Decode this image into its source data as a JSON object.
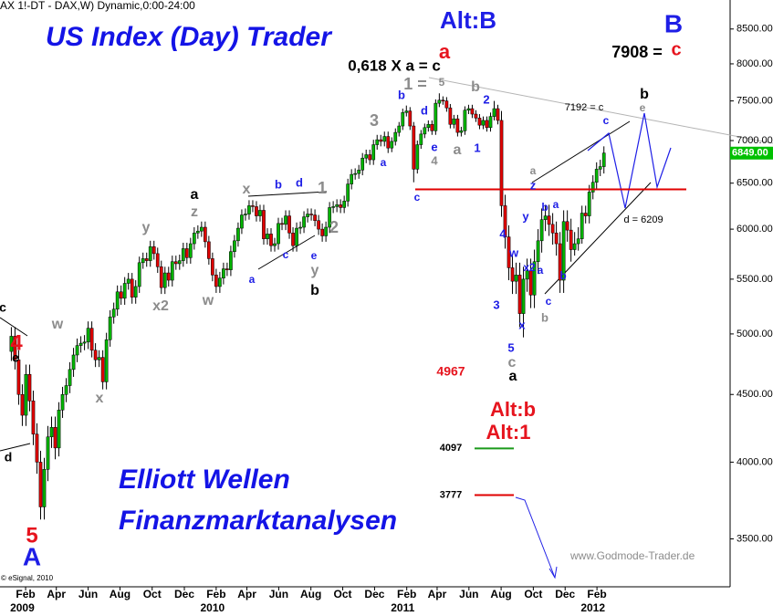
{
  "chart_data": {
    "type": "candlestick",
    "header": "AX 1!-DT - DAX,W) Dynamic,0:00-24:00",
    "title": "US Index (Day) Trader",
    "subtitle_1": "Elliott Wellen",
    "subtitle_2": "Finanzmarktanalysen",
    "watermark": "www.Godmode-Trader.de",
    "copyright": "© eSignal, 2010",
    "log": true,
    "up_color": "#00b400",
    "down_color": "#e00000",
    "open": [
      4850,
      4980,
      4780,
      4500,
      4340,
      4660,
      4450,
      4200,
      4000,
      3700,
      3950,
      4180,
      4250,
      4100,
      4380,
      4500,
      4570,
      4700,
      4820,
      4900,
      4920,
      4930,
      5050,
      4860,
      4780,
      4800,
      4600,
      4950,
      5150,
      5220,
      5380,
      5320,
      5460,
      5500,
      5330,
      5430,
      5660,
      5700,
      5680,
      5820,
      5750,
      5620,
      5420,
      5560,
      5490,
      5670,
      5650,
      5680,
      5800,
      5710,
      5850,
      5960,
      5980,
      6020,
      5870,
      5700,
      5540,
      5430,
      5510,
      5600,
      5590,
      5770,
      5880,
      6010,
      6150,
      6160,
      6250,
      6240,
      6140,
      6200,
      5900,
      5950,
      5830,
      5850,
      6060,
      6050,
      6140,
      5960,
      5830,
      6010,
      6020,
      6130,
      6160,
      6150,
      6090,
      6000,
      5930,
      6020,
      6230,
      6240,
      6260,
      6230,
      6300,
      6490,
      6600,
      6610,
      6650,
      6790,
      6830,
      6770,
      6950,
      7010,
      6990,
      7050,
      6910,
      6990,
      7100,
      7180,
      7350,
      7370,
      7180,
      6660,
      6950,
      7080,
      7160,
      7200,
      7120,
      7470,
      7510,
      7500,
      7410,
      7200,
      7270,
      7100,
      7120,
      7380,
      7400,
      7330,
      7280,
      7190,
      7250,
      7160,
      7300,
      7400,
      7250,
      6250,
      5920,
      5610,
      5480,
      5540,
      5180,
      5500,
      5580,
      5350,
      5670,
      5880,
      6100,
      6140,
      6050,
      5960,
      5850,
      5490,
      6080,
      5990,
      5790,
      5850,
      5900,
      6170,
      6140,
      6400,
      6510,
      6660,
      6690
    ],
    "high": [
      5060,
      5060,
      4860,
      4580,
      4740,
      4740,
      4530,
      4280,
      4080,
      4030,
      4260,
      4330,
      4330,
      4440,
      4560,
      4630,
      4760,
      4880,
      4960,
      4980,
      4990,
      5110,
      5110,
      4920,
      4860,
      4860,
      5010,
      5210,
      5280,
      5440,
      5440,
      5520,
      5560,
      5560,
      5490,
      5720,
      5760,
      5760,
      5880,
      5880,
      5810,
      5680,
      5620,
      5620,
      5730,
      5730,
      5740,
      5860,
      5860,
      5910,
      6020,
      6040,
      6080,
      6080,
      5930,
      5760,
      5600,
      5570,
      5660,
      5660,
      5830,
      5940,
      6070,
      6210,
      6220,
      6310,
      6310,
      6300,
      6260,
      6260,
      6010,
      6010,
      5910,
      6120,
      6120,
      6200,
      6200,
      6020,
      6070,
      6080,
      6190,
      6220,
      6220,
      6210,
      6150,
      6060,
      6080,
      6290,
      6300,
      6320,
      6320,
      6360,
      6550,
      6660,
      6670,
      6710,
      6850,
      6890,
      6890,
      7010,
      7070,
      7070,
      7110,
      7110,
      7040,
      7150,
      7230,
      7400,
      7440,
      7420,
      7230,
      7000,
      7130,
      7210,
      7250,
      7250,
      7520,
      7600,
      7560,
      7550,
      7460,
      7320,
      7320,
      7170,
      7430,
      7450,
      7450,
      7380,
      7330,
      7300,
      7300,
      7350,
      7500,
      7450,
      7370,
      6370,
      6040,
      5730,
      5660,
      5660,
      5620,
      5700,
      5700,
      5790,
      6000,
      6220,
      6260,
      6260,
      6170,
      6080,
      5970,
      6200,
      6200,
      6110,
      5970,
      6020,
      6250,
      6250,
      6480,
      6590,
      6740,
      6770,
      6930
    ],
    "low": [
      4770,
      4700,
      4420,
      4260,
      4260,
      4370,
      4120,
      3920,
      3620,
      3620,
      3870,
      4100,
      4020,
      4040,
      4320,
      4440,
      4510,
      4640,
      4760,
      4840,
      4860,
      4870,
      4800,
      4720,
      4720,
      4540,
      4540,
      4890,
      5090,
      5160,
      5260,
      5260,
      5400,
      5270,
      5270,
      5370,
      5600,
      5620,
      5620,
      5690,
      5560,
      5360,
      5360,
      5430,
      5430,
      5590,
      5590,
      5620,
      5650,
      5650,
      5790,
      5900,
      5920,
      5810,
      5640,
      5480,
      5370,
      5370,
      5450,
      5530,
      5530,
      5710,
      5820,
      5950,
      6090,
      6100,
      6180,
      6080,
      6080,
      5840,
      5840,
      5770,
      5770,
      5790,
      5990,
      5990,
      5900,
      5770,
      5770,
      5950,
      5960,
      6070,
      6090,
      6030,
      5940,
      5870,
      5870,
      5960,
      6170,
      6180,
      6170,
      6170,
      6240,
      6430,
      6540,
      6550,
      6590,
      6730,
      6710,
      6710,
      6890,
      6930,
      6930,
      6850,
      6860,
      6940,
      7050,
      7130,
      7300,
      7130,
      6510,
      6610,
      6900,
      7030,
      7110,
      7070,
      7070,
      7420,
      7450,
      7360,
      7150,
      7150,
      7050,
      7050,
      7070,
      7330,
      7280,
      7230,
      7140,
      7140,
      7110,
      7110,
      7250,
      7200,
      6130,
      5800,
      5490,
      5360,
      5360,
      5060,
      4970,
      5380,
      5230,
      5230,
      5550,
      5760,
      5980,
      5930,
      5840,
      5730,
      5370,
      5370,
      5870,
      5670,
      5730,
      5780,
      5850,
      6060,
      6060,
      6320,
      6430,
      6580,
      6610
    ],
    "close": [
      4980,
      4780,
      4500,
      4340,
      4660,
      4450,
      4200,
      4000,
      3700,
      3950,
      4180,
      4250,
      4100,
      4380,
      4500,
      4570,
      4700,
      4820,
      4900,
      4920,
      4930,
      5050,
      4860,
      4780,
      4800,
      4600,
      4950,
      5150,
      5220,
      5380,
      5320,
      5460,
      5500,
      5330,
      5430,
      5660,
      5700,
      5680,
      5820,
      5750,
      5620,
      5420,
      5560,
      5490,
      5670,
      5650,
      5680,
      5800,
      5710,
      5850,
      5960,
      5980,
      6020,
      5870,
      5700,
      5540,
      5430,
      5510,
      5600,
      5590,
      5770,
      5880,
      6010,
      6150,
      6160,
      6250,
      6240,
      6140,
      6200,
      5900,
      5950,
      5830,
      5850,
      6060,
      6050,
      6140,
      5960,
      5830,
      6010,
      6020,
      6130,
      6160,
      6150,
      6090,
      6000,
      5930,
      6020,
      6230,
      6240,
      6260,
      6230,
      6300,
      6490,
      6600,
      6610,
      6650,
      6790,
      6830,
      6770,
      6950,
      7010,
      6990,
      7050,
      6910,
      6990,
      7100,
      7180,
      7350,
      7370,
      7180,
      6660,
      6950,
      7080,
      7160,
      7200,
      7120,
      7470,
      7510,
      7500,
      7410,
      7200,
      7270,
      7100,
      7120,
      7380,
      7400,
      7330,
      7280,
      7190,
      7250,
      7160,
      7300,
      7400,
      7250,
      6250,
      5920,
      5610,
      5480,
      5540,
      5180,
      5500,
      5580,
      5350,
      5670,
      5880,
      6100,
      6140,
      6050,
      5960,
      5850,
      5490,
      6080,
      5990,
      5790,
      5850,
      5900,
      6170,
      6140,
      6400,
      6510,
      6660,
      6690,
      6850
    ],
    "ylim": [
      3220,
      8940
    ],
    "yticks": [
      {
        "value": 3500,
        "label": "3500.00"
      },
      {
        "value": 4000,
        "label": "4000.00"
      },
      {
        "value": 4500,
        "label": "4500.00"
      },
      {
        "value": 5000,
        "label": "5000.00"
      },
      {
        "value": 5500,
        "label": "5500.00"
      },
      {
        "value": 6000,
        "label": "6000.00"
      },
      {
        "value": 6500,
        "label": "6500.00"
      },
      {
        "value": 7000,
        "label": "7000.00"
      },
      {
        "value": 7500,
        "label": "7500.00"
      },
      {
        "value": 8000,
        "label": "8000.00"
      },
      {
        "value": 8500,
        "label": "8500.00"
      }
    ],
    "xlim": [
      -3.1,
      196.5
    ],
    "xticks": [
      {
        "value": 3.9,
        "label": "Feb"
      },
      {
        "value": 12.3,
        "label": "Apr"
      },
      {
        "value": 21,
        "label": "Jun"
      },
      {
        "value": 29.7,
        "label": "Aug"
      },
      {
        "value": 38.5,
        "label": "Oct"
      },
      {
        "value": 47.3,
        "label": "Dec"
      },
      {
        "value": 56,
        "label": "Feb"
      },
      {
        "value": 64.4,
        "label": "Apr"
      },
      {
        "value": 73.1,
        "label": "Jun"
      },
      {
        "value": 81.9,
        "label": "Aug"
      },
      {
        "value": 90.6,
        "label": "Oct"
      },
      {
        "value": 99.3,
        "label": "Dec"
      },
      {
        "value": 108.1,
        "label": "Feb"
      },
      {
        "value": 116.4,
        "label": "Apr"
      },
      {
        "value": 125.1,
        "label": "Jun"
      },
      {
        "value": 133.9,
        "label": "Aug"
      },
      {
        "value": 142.7,
        "label": "Oct"
      },
      {
        "value": 151.4,
        "label": "Dec"
      },
      {
        "value": 160.1,
        "label": "Feb"
      }
    ],
    "year_ticks": [
      {
        "value": 0,
        "label": "2009"
      },
      {
        "value": 52,
        "label": "2010"
      },
      {
        "value": 104,
        "label": "2011"
      },
      {
        "value": 156,
        "label": "2012"
      }
    ],
    "last_price": {
      "value": 6849,
      "label": "6849.00",
      "color": "#00c000"
    },
    "support_line": {
      "value": 6430,
      "color": "#e00000"
    },
    "levels": [
      {
        "value": 4097,
        "color": "#1a9a1a"
      },
      {
        "value": 3777,
        "color": "#e00000"
      }
    ],
    "annotations": [
      {
        "text": "Alt:B",
        "color": "#1e1ee6"
      },
      {
        "text": "B",
        "color": "#1e1ee6"
      },
      {
        "text": "a",
        "color": "#e6141e"
      },
      {
        "text": "c",
        "color": "#e6141e"
      },
      {
        "text": "7908 =",
        "color": "#000000"
      },
      {
        "text": "0,618 X a = c",
        "color": "#000000"
      },
      {
        "text": "4",
        "color": "#e6141e"
      },
      {
        "text": "5",
        "color": "#e6141e"
      },
      {
        "text": "A",
        "color": "#1e1ee6"
      },
      {
        "text": "4967",
        "color": "#e6141e"
      },
      {
        "text": "Alt:b",
        "color": "#e6141e"
      },
      {
        "text": "Alt:1",
        "color": "#e6141e"
      },
      {
        "text": "c",
        "color": "#000000"
      },
      {
        "text": "e",
        "color": "#000000"
      },
      {
        "text": "d",
        "color": "#000000"
      },
      {
        "text": "w",
        "color": "#8c8c8c"
      },
      {
        "text": "x",
        "color": "#8c8c8c"
      },
      {
        "text": "y",
        "color": "#8c8c8c"
      },
      {
        "text": "x2",
        "color": "#8c8c8c"
      },
      {
        "text": "w",
        "color": "#8c8c8c"
      },
      {
        "text": "a",
        "color": "#000000"
      },
      {
        "text": "z",
        "color": "#8c8c8c"
      },
      {
        "text": "x",
        "color": "#8c8c8c"
      },
      {
        "text": "b",
        "color": "#1e1ee6"
      },
      {
        "text": "d",
        "color": "#1e1ee6"
      },
      {
        "text": "1",
        "color": "#8c8c8c"
      },
      {
        "text": "2",
        "color": "#8c8c8c"
      },
      {
        "text": "a",
        "color": "#1e1ee6"
      },
      {
        "text": "c",
        "color": "#1e1ee6"
      },
      {
        "text": "e",
        "color": "#1e1ee6"
      },
      {
        "text": "y",
        "color": "#8c8c8c"
      },
      {
        "text": "b",
        "color": "#000000"
      },
      {
        "text": "3",
        "color": "#8c8c8c"
      },
      {
        "text": "a",
        "color": "#1e1ee6"
      },
      {
        "text": "1 =",
        "color": "#8c8c8c"
      },
      {
        "text": "5",
        "color": "#8c8c8c"
      },
      {
        "text": "b",
        "color": "#1e1ee6"
      },
      {
        "text": "d",
        "color": "#1e1ee6"
      },
      {
        "text": "e",
        "color": "#1e1ee6"
      },
      {
        "text": "4",
        "color": "#8c8c8c"
      },
      {
        "text": "c",
        "color": "#1e1ee6"
      },
      {
        "text": "b",
        "color": "#8c8c8c"
      },
      {
        "text": "2",
        "color": "#1e1ee6"
      },
      {
        "text": "a",
        "color": "#8c8c8c"
      },
      {
        "text": "1",
        "color": "#1e1ee6"
      },
      {
        "text": "4",
        "color": "#1e1ee6"
      },
      {
        "text": "w",
        "color": "#1e1ee6"
      },
      {
        "text": "3",
        "color": "#1e1ee6"
      },
      {
        "text": "x2",
        "color": "#1e1ee6"
      },
      {
        "text": "a",
        "color": "#1e1ee6"
      },
      {
        "text": "5",
        "color": "#1e1ee6"
      },
      {
        "text": "c",
        "color": "#8c8c8c"
      },
      {
        "text": "a",
        "color": "#000000"
      },
      {
        "text": "x",
        "color": "#1e1ee6"
      },
      {
        "text": "y",
        "color": "#1e1ee6"
      },
      {
        "text": "z",
        "color": "#1e1ee6"
      },
      {
        "text": "a",
        "color": "#8c8c8c"
      },
      {
        "text": "b",
        "color": "#1e1ee6"
      },
      {
        "text": "a",
        "color": "#1e1ee6"
      },
      {
        "text": "c",
        "color": "#1e1ee6"
      },
      {
        "text": "b",
        "color": "#8c8c8c"
      },
      {
        "text": "b",
        "color": "#1e1ee6"
      },
      {
        "text": "7192 = c",
        "color": "#000000"
      },
      {
        "text": "c",
        "color": "#1e1ee6"
      },
      {
        "text": "b",
        "color": "#000000"
      },
      {
        "text": "e",
        "color": "#8c8c8c"
      },
      {
        "text": "d = 6209",
        "color": "#000000"
      }
    ]
  }
}
